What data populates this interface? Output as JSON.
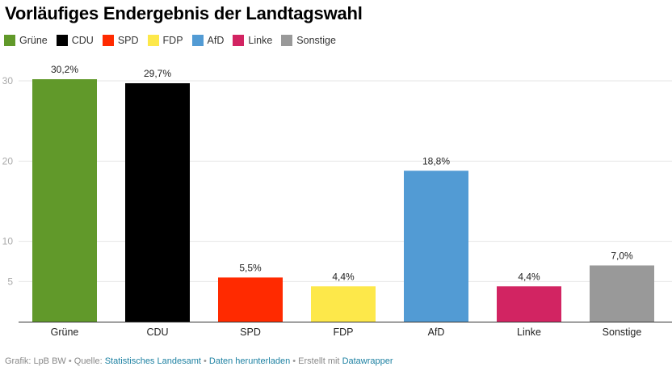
{
  "title": "Vorläufiges Endergebnis der Landtagswahl",
  "legend": [
    {
      "label": "Grüne",
      "color": "#61992a"
    },
    {
      "label": "CDU",
      "color": "#000000"
    },
    {
      "label": "SPD",
      "color": "#ff2a00"
    },
    {
      "label": "FDP",
      "color": "#fde84a"
    },
    {
      "label": "AfD",
      "color": "#529bd4"
    },
    {
      "label": "Linke",
      "color": "#d22462"
    },
    {
      "label": "Sonstige",
      "color": "#999999"
    }
  ],
  "footer": {
    "grafik_prefix": "Grafik: LpB BW",
    "separator": " • ",
    "quelle_prefix": "Quelle: ",
    "quelle_link": "Statistisches Landesamt",
    "download_link": "Daten herunterladen",
    "erstellt_prefix": "Erstellt mit ",
    "datawrapper_link": "Datawrapper"
  },
  "chart_data": {
    "type": "bar",
    "title": "Vorläufiges Endergebnis der Landtagswahl",
    "xlabel": "",
    "ylabel": "",
    "categories": [
      "Grüne",
      "CDU",
      "SPD",
      "FDP",
      "AfD",
      "Linke",
      "Sonstige"
    ],
    "values": [
      30.2,
      29.7,
      5.5,
      4.4,
      18.8,
      4.4,
      7.0
    ],
    "value_labels": [
      "30,2%",
      "29,7%",
      "5,5%",
      "4,4%",
      "18,8%",
      "4,4%",
      "7,0%"
    ],
    "colors": [
      "#61992a",
      "#000000",
      "#ff2a00",
      "#fde84a",
      "#529bd4",
      "#d22462",
      "#999999"
    ],
    "yticks": [
      5,
      10,
      20,
      30
    ],
    "ytick_labels": [
      "5",
      "10",
      "20",
      "30"
    ],
    "ylim": [
      0,
      30
    ],
    "grid": true,
    "legend_position": "top-left"
  }
}
